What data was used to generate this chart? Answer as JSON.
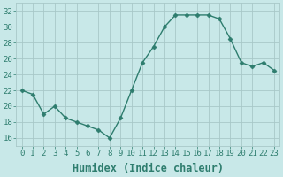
{
  "x": [
    0,
    1,
    2,
    3,
    4,
    5,
    6,
    7,
    8,
    9,
    10,
    11,
    12,
    13,
    14,
    15,
    16,
    17,
    18,
    19,
    20,
    21,
    22,
    23
  ],
  "y": [
    22,
    21.5,
    19,
    20,
    18.5,
    18,
    17.5,
    17,
    16,
    18.5,
    22,
    25.5,
    27.5,
    30,
    31.5,
    31.5,
    31.5,
    31.5,
    31,
    28.5,
    25.5,
    25,
    25.5,
    24.5
  ],
  "line_color": "#2e7d6e",
  "marker": "D",
  "markersize": 2.5,
  "linewidth": 1.0,
  "bg_color": "#c8e8e8",
  "grid_color": "#a8c8c8",
  "xlabel": "Humidex (Indice chaleur)",
  "xlim": [
    -0.5,
    23.5
  ],
  "ylim": [
    15,
    33
  ],
  "yticks": [
    16,
    18,
    20,
    22,
    24,
    26,
    28,
    30,
    32
  ],
  "xticks": [
    0,
    1,
    2,
    3,
    4,
    5,
    6,
    7,
    8,
    9,
    10,
    11,
    12,
    13,
    14,
    15,
    16,
    17,
    18,
    19,
    20,
    21,
    22,
    23
  ],
  "xtick_labels": [
    "0",
    "1",
    "2",
    "3",
    "4",
    "5",
    "6",
    "7",
    "8",
    "9",
    "10",
    "11",
    "12",
    "13",
    "14",
    "15",
    "16",
    "17",
    "18",
    "19",
    "20",
    "21",
    "22",
    "23"
  ],
  "tick_fontsize": 6.5,
  "xlabel_fontsize": 8.5
}
